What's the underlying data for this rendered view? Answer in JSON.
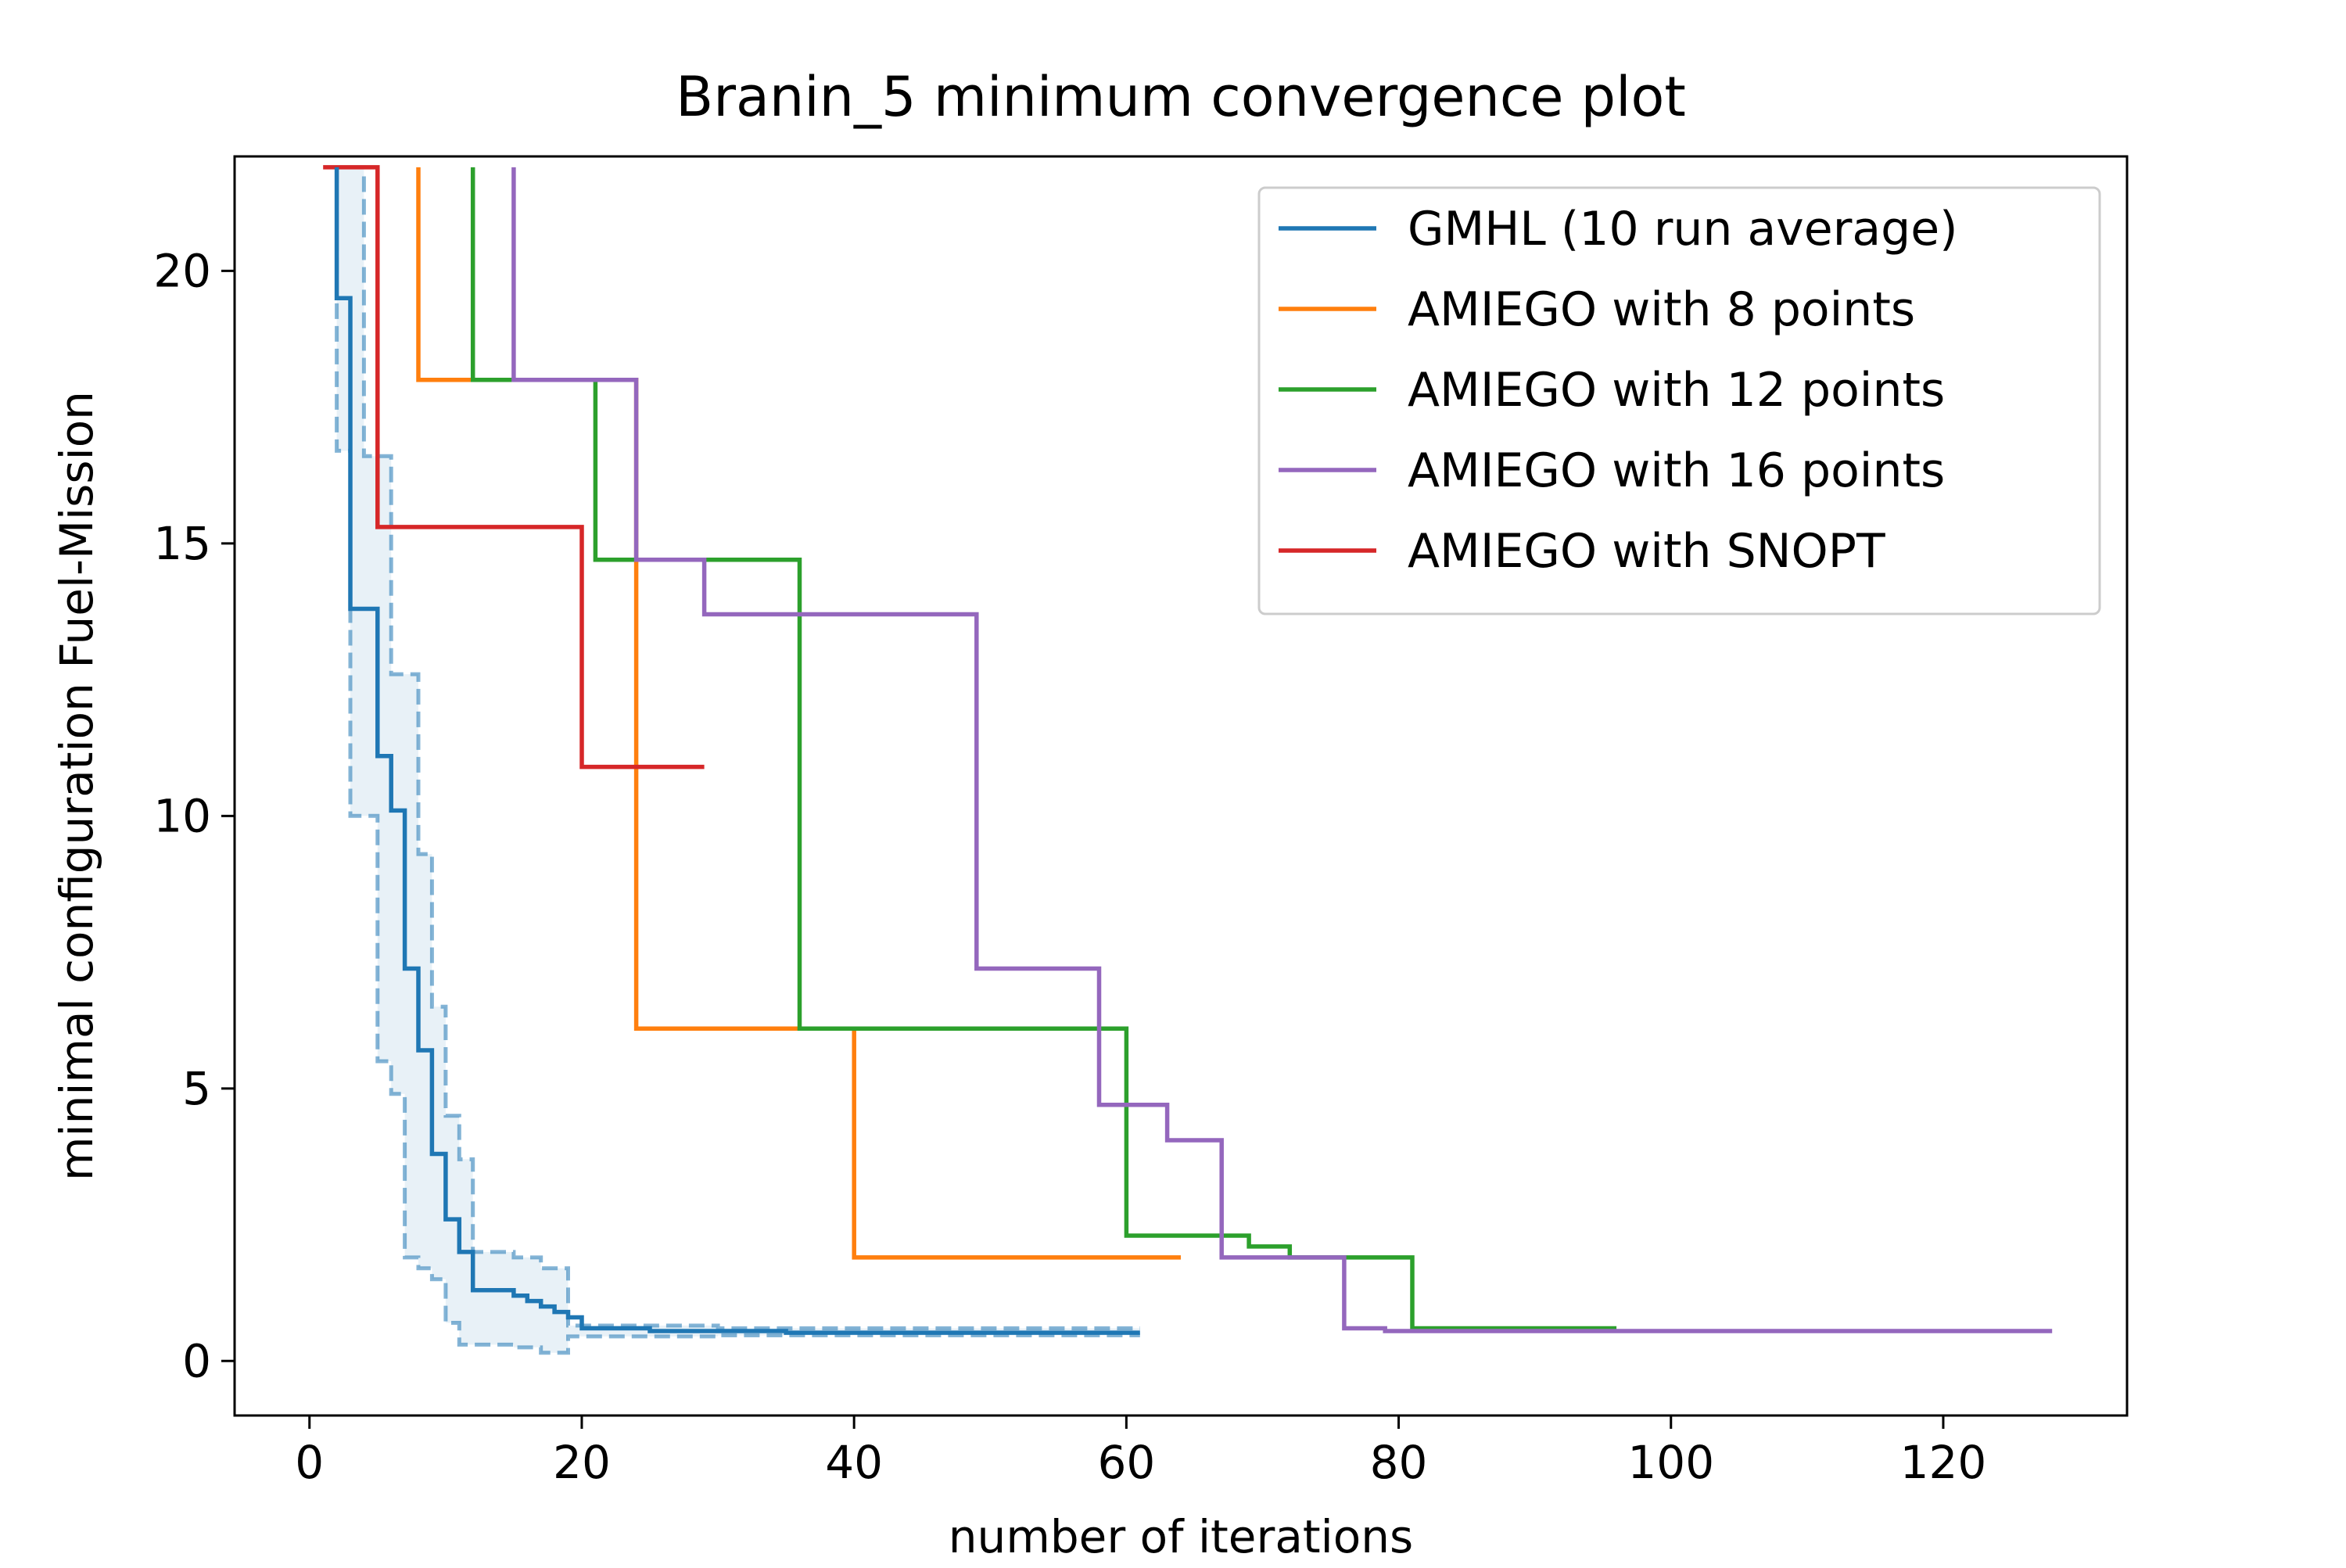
{
  "chart_data": {
    "type": "line",
    "title": "Branin_5 minimum convergence plot",
    "xlabel": "number of iterations",
    "ylabel": "minimal configuration Fuel-Mission",
    "xlim": [
      -5.5,
      133.5
    ],
    "ylim": [
      -1.0,
      22.1
    ],
    "x_ticks": [
      0,
      20,
      40,
      60,
      80,
      100,
      120
    ],
    "y_ticks": [
      0,
      5,
      10,
      15,
      20
    ],
    "grid": false,
    "legend_position": "top-right",
    "series": [
      {
        "name": "GMHL (10 run average)",
        "color": "#1f77b4",
        "step": "post",
        "points": [
          [
            2,
            21.9
          ],
          [
            2,
            19.5
          ],
          [
            3,
            19.5
          ],
          [
            3,
            13.8
          ],
          [
            5,
            13.8
          ],
          [
            5,
            11.1
          ],
          [
            6,
            11.1
          ],
          [
            6,
            10.1
          ],
          [
            7,
            10.1
          ],
          [
            7,
            7.2
          ],
          [
            8,
            7.2
          ],
          [
            8,
            5.7
          ],
          [
            9,
            5.7
          ],
          [
            9,
            3.8
          ],
          [
            10,
            3.8
          ],
          [
            10,
            2.6
          ],
          [
            11,
            2.6
          ],
          [
            11,
            2.0
          ],
          [
            12,
            2.0
          ],
          [
            12,
            1.3
          ],
          [
            15,
            1.3
          ],
          [
            15,
            1.2
          ],
          [
            16,
            1.2
          ],
          [
            16,
            1.1
          ],
          [
            17,
            1.1
          ],
          [
            17,
            1.0
          ],
          [
            18,
            1.0
          ],
          [
            18,
            0.9
          ],
          [
            19,
            0.9
          ],
          [
            19,
            0.8
          ],
          [
            20,
            0.8
          ],
          [
            20,
            0.6
          ],
          [
            25,
            0.6
          ],
          [
            25,
            0.55
          ],
          [
            35,
            0.55
          ],
          [
            35,
            0.52
          ],
          [
            61,
            0.52
          ]
        ]
      },
      {
        "name": "AMIEGO with 8 points",
        "color": "#ff7f0e",
        "step": "post",
        "points": [
          [
            8,
            21.9
          ],
          [
            8,
            18.0
          ],
          [
            24,
            18.0
          ],
          [
            24,
            6.1
          ],
          [
            40,
            6.1
          ],
          [
            40,
            1.9
          ],
          [
            64,
            1.9
          ]
        ]
      },
      {
        "name": "AMIEGO with 12 points",
        "color": "#2ca02c",
        "step": "post",
        "points": [
          [
            12,
            21.9
          ],
          [
            12,
            18.0
          ],
          [
            21,
            18.0
          ],
          [
            21,
            14.7
          ],
          [
            36,
            14.7
          ],
          [
            36,
            6.1
          ],
          [
            60,
            6.1
          ],
          [
            60,
            2.3
          ],
          [
            69,
            2.3
          ],
          [
            69,
            2.1
          ],
          [
            72,
            2.1
          ],
          [
            72,
            1.9
          ],
          [
            81,
            1.9
          ],
          [
            81,
            0.6
          ],
          [
            96,
            0.6
          ]
        ]
      },
      {
        "name": "AMIEGO with 16 points",
        "color": "#9467bd",
        "step": "post",
        "points": [
          [
            15,
            21.9
          ],
          [
            15,
            18.0
          ],
          [
            24,
            18.0
          ],
          [
            24,
            14.7
          ],
          [
            29,
            14.7
          ],
          [
            29,
            13.7
          ],
          [
            49,
            13.7
          ],
          [
            49,
            7.2
          ],
          [
            58,
            7.2
          ],
          [
            58,
            4.7
          ],
          [
            63,
            4.7
          ],
          [
            63,
            4.05
          ],
          [
            67,
            4.05
          ],
          [
            67,
            1.9
          ],
          [
            76,
            1.9
          ],
          [
            76,
            0.6
          ],
          [
            79,
            0.6
          ],
          [
            79,
            0.55
          ],
          [
            128,
            0.55
          ]
        ]
      },
      {
        "name": "AMIEGO with SNOPT",
        "color": "#d62728",
        "step": "post",
        "points": [
          [
            1,
            21.9
          ],
          [
            5,
            21.9
          ],
          [
            5,
            15.3
          ],
          [
            20,
            15.3
          ],
          [
            20,
            10.9
          ],
          [
            29,
            10.9
          ]
        ]
      }
    ],
    "bands": [
      {
        "series": "GMHL (10 run average)",
        "color": "#1f77b4",
        "upper": [
          [
            3,
            21.9
          ],
          [
            4,
            21.9
          ],
          [
            4,
            16.6
          ],
          [
            6,
            16.6
          ],
          [
            6,
            12.6
          ],
          [
            8,
            12.6
          ],
          [
            8,
            9.3
          ],
          [
            9,
            9.3
          ],
          [
            9,
            6.5
          ],
          [
            10,
            6.5
          ],
          [
            10,
            4.5
          ],
          [
            11,
            4.5
          ],
          [
            11,
            3.7
          ],
          [
            12,
            3.7
          ],
          [
            12,
            2.0
          ],
          [
            15,
            2.0
          ],
          [
            15,
            1.9
          ],
          [
            17,
            1.9
          ],
          [
            17,
            1.7
          ],
          [
            19,
            1.7
          ],
          [
            19,
            0.65
          ],
          [
            30,
            0.65
          ],
          [
            30,
            0.6
          ],
          [
            61,
            0.6
          ]
        ],
        "lower": [
          [
            2,
            21.9
          ],
          [
            2,
            16.7
          ],
          [
            3,
            16.7
          ],
          [
            3,
            10.0
          ],
          [
            5,
            10.0
          ],
          [
            5,
            5.5
          ],
          [
            6,
            5.5
          ],
          [
            6,
            4.9
          ],
          [
            7,
            4.9
          ],
          [
            7,
            1.9
          ],
          [
            8,
            1.9
          ],
          [
            8,
            1.7
          ],
          [
            9,
            1.7
          ],
          [
            9,
            1.5
          ],
          [
            10,
            1.5
          ],
          [
            10,
            0.7
          ],
          [
            11,
            0.7
          ],
          [
            11,
            0.3
          ],
          [
            15,
            0.3
          ],
          [
            15,
            0.25
          ],
          [
            17,
            0.25
          ],
          [
            17,
            0.15
          ],
          [
            19,
            0.15
          ],
          [
            19,
            0.45
          ],
          [
            30,
            0.45
          ],
          [
            30,
            0.47
          ],
          [
            61,
            0.47
          ]
        ]
      }
    ]
  }
}
